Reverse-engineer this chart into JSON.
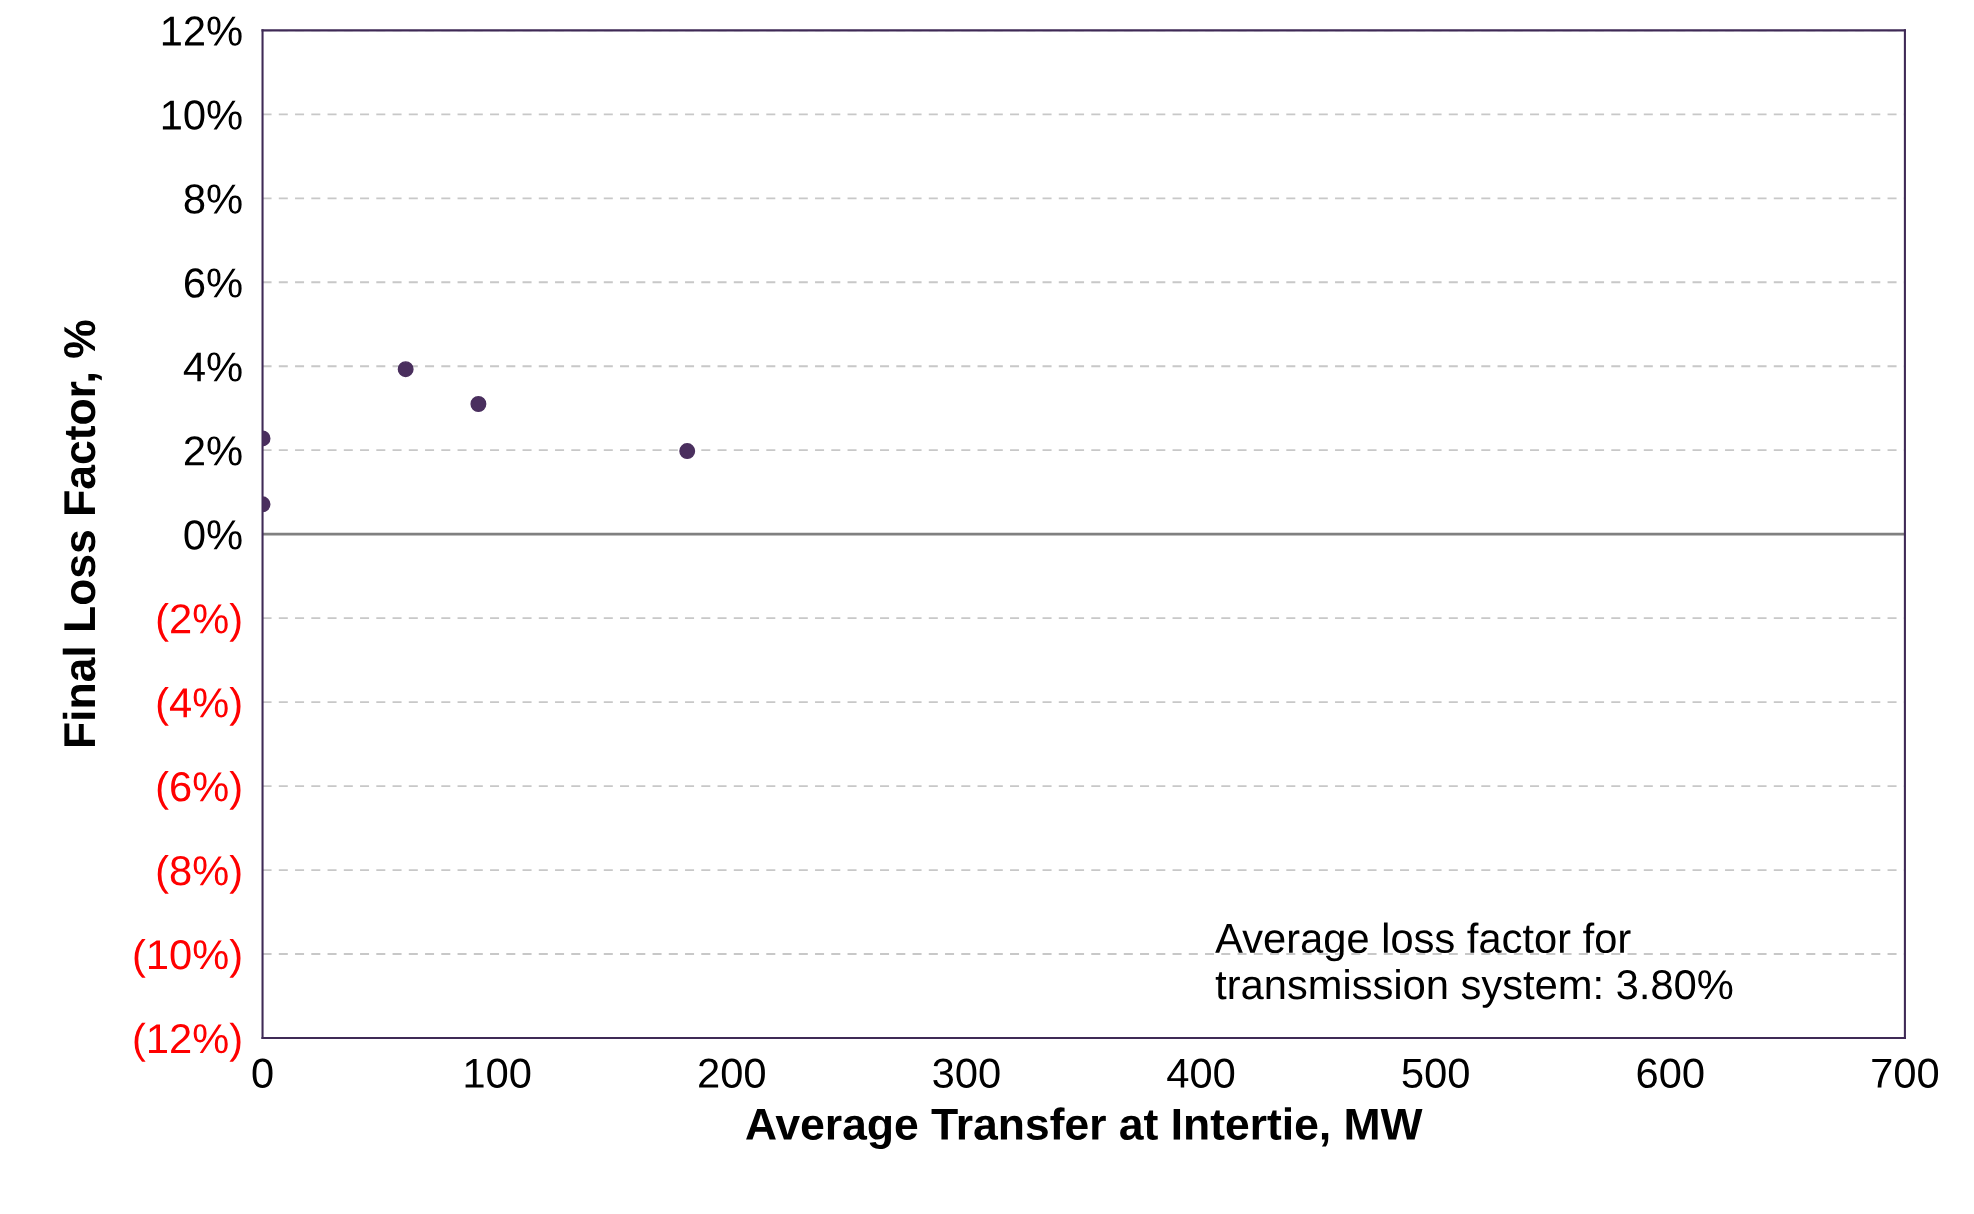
{
  "chart_data": {
    "type": "scatter",
    "xlabel": "Average Transfer at Intertie, MW",
    "ylabel": "Final Loss Factor, %",
    "x": [
      0,
      0,
      61,
      92,
      181
    ],
    "series": [
      {
        "color": "#4a2f5e",
        "values": [
          2.28,
          0.71,
          3.93,
          3.1,
          1.98
        ]
      }
    ],
    "xlim": [
      0,
      700
    ],
    "xticks": [
      0,
      100,
      200,
      300,
      400,
      500,
      600,
      700
    ],
    "ylim": [
      -12,
      12
    ],
    "yticks": [
      {
        "value": -12,
        "label": "(12%)"
      },
      {
        "value": -10,
        "label": "(10%)"
      },
      {
        "value": -8,
        "label": "(8%)"
      },
      {
        "value": -6,
        "label": "(6%)"
      },
      {
        "value": -4,
        "label": "(4%)"
      },
      {
        "value": -2,
        "label": "(2%)"
      },
      {
        "value": 0,
        "label": "0%"
      },
      {
        "value": 2,
        "label": "2%"
      },
      {
        "value": 4,
        "label": "4%"
      },
      {
        "value": 6,
        "label": "6%"
      },
      {
        "value": 8,
        "label": "8%"
      },
      {
        "value": 10,
        "label": "10%"
      },
      {
        "value": 12,
        "label": "12%"
      }
    ],
    "ref_lines": [
      {
        "axis": "y",
        "value": 0,
        "color": "#808080"
      }
    ],
    "grid": "y",
    "marker": "circle",
    "legend": false,
    "annotations": [
      "Average loss factor for\ntransmission system: 3.80%"
    ]
  }
}
